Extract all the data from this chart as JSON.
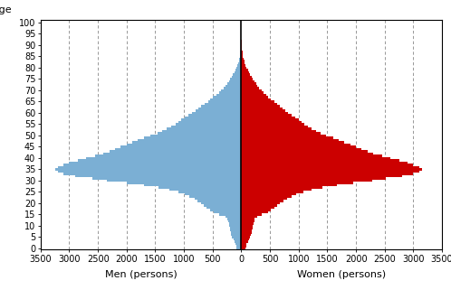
{
  "ages": [
    0,
    1,
    2,
    3,
    4,
    5,
    6,
    7,
    8,
    9,
    10,
    11,
    12,
    13,
    14,
    15,
    16,
    17,
    18,
    19,
    20,
    21,
    22,
    23,
    24,
    25,
    26,
    27,
    28,
    29,
    30,
    31,
    32,
    33,
    34,
    35,
    36,
    37,
    38,
    39,
    40,
    41,
    42,
    43,
    44,
    45,
    46,
    47,
    48,
    49,
    50,
    51,
    52,
    53,
    54,
    55,
    56,
    57,
    58,
    59,
    60,
    61,
    62,
    63,
    64,
    65,
    66,
    67,
    68,
    69,
    70,
    71,
    72,
    73,
    74,
    75,
    76,
    77,
    78,
    79,
    80,
    81,
    82,
    83,
    84,
    85,
    86,
    87,
    88,
    89,
    90,
    91,
    92,
    93,
    94,
    95,
    96,
    97,
    98,
    99
  ],
  "men": [
    80,
    90,
    100,
    120,
    140,
    160,
    180,
    180,
    190,
    200,
    210,
    220,
    230,
    240,
    280,
    380,
    480,
    550,
    600,
    650,
    700,
    760,
    820,
    900,
    980,
    1100,
    1250,
    1450,
    1700,
    2000,
    2350,
    2600,
    2900,
    3100,
    3200,
    3250,
    3200,
    3100,
    3000,
    2850,
    2700,
    2550,
    2400,
    2300,
    2200,
    2100,
    2000,
    1900,
    1800,
    1700,
    1580,
    1460,
    1380,
    1300,
    1220,
    1150,
    1100,
    1050,
    980,
    920,
    860,
    800,
    750,
    700,
    640,
    580,
    540,
    490,
    440,
    390,
    350,
    310,
    280,
    250,
    220,
    195,
    170,
    150,
    125,
    105,
    88,
    72,
    58,
    46,
    36,
    28,
    21,
    15,
    10,
    7,
    5,
    3,
    2,
    1,
    1,
    0,
    0,
    0,
    0,
    0
  ],
  "women": [
    75,
    85,
    95,
    115,
    135,
    155,
    170,
    175,
    182,
    195,
    205,
    215,
    225,
    235,
    270,
    360,
    460,
    520,
    570,
    620,
    680,
    740,
    800,
    880,
    960,
    1080,
    1230,
    1420,
    1660,
    1950,
    2280,
    2520,
    2800,
    3000,
    3100,
    3150,
    3100,
    3000,
    2900,
    2750,
    2600,
    2450,
    2300,
    2200,
    2100,
    2000,
    1900,
    1800,
    1700,
    1600,
    1480,
    1380,
    1300,
    1230,
    1160,
    1100,
    1050,
    1000,
    940,
    880,
    820,
    770,
    720,
    670,
    620,
    570,
    520,
    470,
    430,
    390,
    350,
    315,
    285,
    255,
    225,
    200,
    178,
    155,
    132,
    112,
    93,
    76,
    62,
    50,
    39,
    30,
    23,
    17,
    11,
    8,
    5,
    3,
    2,
    1,
    1,
    0,
    0,
    0,
    0,
    0
  ],
  "men_color": "#7BAFD4",
  "women_color": "#CC0000",
  "background_color": "#ffffff",
  "xlim": 3500,
  "xlabel_men": "Men (persons)",
  "xlabel_women": "Women (persons)",
  "age_label": "Age",
  "xtick_positions": [
    -3500,
    -3000,
    -2500,
    -2000,
    -1500,
    -1000,
    -500,
    0,
    500,
    1000,
    1500,
    2000,
    2500,
    3000,
    3500
  ],
  "xtick_labels": [
    "3500",
    "3000",
    "2500",
    "2000",
    "1500",
    "1000",
    "500",
    "0",
    "500",
    "1000",
    "1500",
    "2000",
    "2500",
    "3000",
    "3500"
  ],
  "yticks": [
    0,
    5,
    10,
    15,
    20,
    25,
    30,
    35,
    40,
    45,
    50,
    55,
    60,
    65,
    70,
    75,
    80,
    85,
    90,
    95,
    100
  ],
  "grid_positions": [
    -3000,
    -2500,
    -2000,
    -1500,
    -1000,
    -500,
    500,
    1000,
    1500,
    2000,
    2500,
    3000
  ],
  "grid_color": "#888888",
  "tick_fontsize": 7,
  "label_fontsize": 8
}
